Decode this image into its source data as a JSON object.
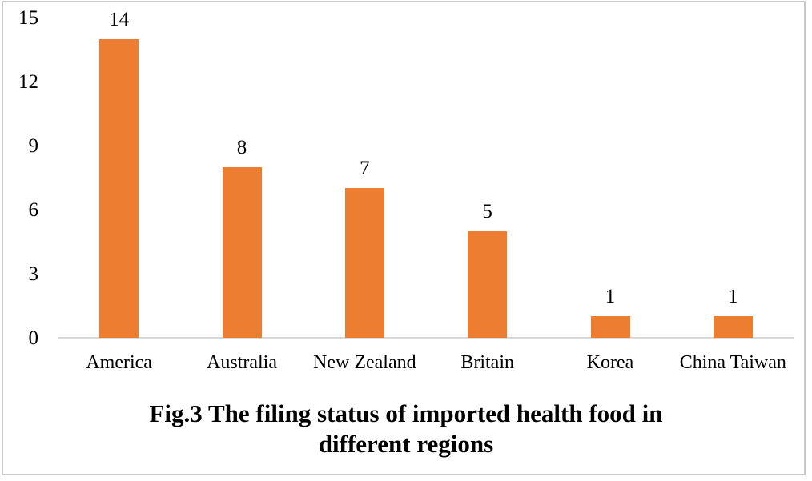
{
  "figure": {
    "caption_line1": "Fig.3 The filing status of imported health food in",
    "caption_line2": "different regions"
  },
  "chart_data": {
    "type": "bar",
    "title": "Fig.3 The filing status of imported health food in different regions",
    "categories": [
      "America",
      "Australia",
      "New Zealand",
      "Britain",
      "Korea",
      "China Taiwan"
    ],
    "values": [
      14,
      8,
      7,
      5,
      1,
      1
    ],
    "data_labels": [
      "14",
      "8",
      "7",
      "5",
      "1",
      "1"
    ],
    "xlabel": "",
    "ylabel": "",
    "ylim": [
      0,
      15
    ],
    "yticks": [
      0,
      3,
      6,
      9,
      12,
      15
    ],
    "grid": false,
    "legend": "none",
    "bar_color": "#ED7D31",
    "axis_line_color": "#D9D9D9",
    "frame_color": "#C9C9C9",
    "text_color": "#000000"
  }
}
